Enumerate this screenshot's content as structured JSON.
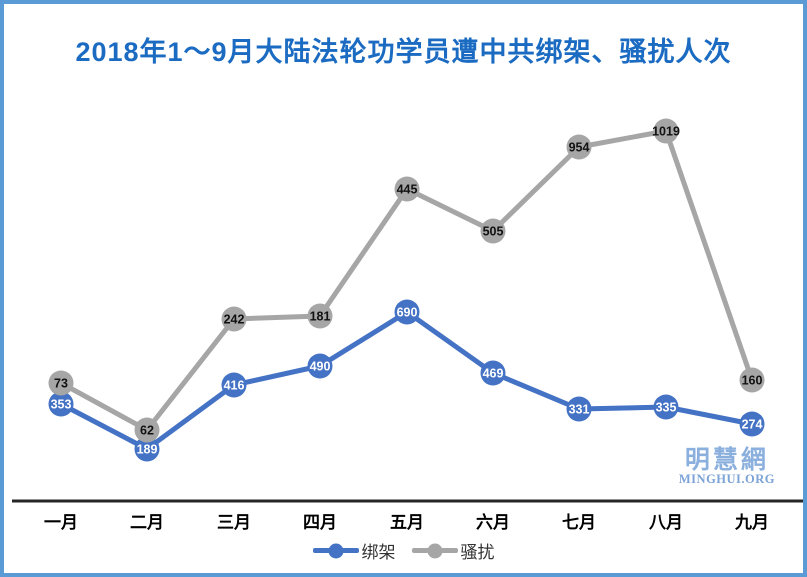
{
  "chart_data": {
    "type": "line",
    "title": "2018年1～9月大陆法轮功学员遭中共绑架、骚扰人次",
    "categories": [
      "一月",
      "二月",
      "三月",
      "四月",
      "五月",
      "六月",
      "七月",
      "八月",
      "九月"
    ],
    "series": [
      {
        "name": "绑架",
        "color": "#4472C4",
        "label_color": "#ffffff",
        "values": [
          353,
          189,
          416,
          490,
          690,
          469,
          331,
          335,
          274
        ],
        "plot_y": [
          400,
          445,
          381,
          362,
          308,
          369,
          405,
          403,
          420
        ]
      },
      {
        "name": "骚扰",
        "color": "#A6A6A6",
        "label_color": "#111111",
        "values": [
          73,
          62,
          242,
          181,
          445,
          505,
          954,
          1019,
          160
        ],
        "plot_y": [
          379,
          426,
          315,
          312,
          185,
          227,
          143,
          127,
          376
        ]
      }
    ],
    "plot_x": [
      57,
      143,
      230,
      316,
      403,
      489,
      575,
      662,
      748
    ],
    "axis_y": 497,
    "axis_color": "#262626",
    "category_label_y": 524,
    "marker_radius": 12.5,
    "line_width": 5,
    "grid": false,
    "legend_position": "bottom",
    "data_labels": "inside-marker"
  },
  "watermark": {
    "line1": "明慧網",
    "line2": "MINGHUI.ORG"
  },
  "colors": {
    "frame_border": "#5B9BD5",
    "title": "#1A6BC1",
    "background": "#ffffff"
  }
}
